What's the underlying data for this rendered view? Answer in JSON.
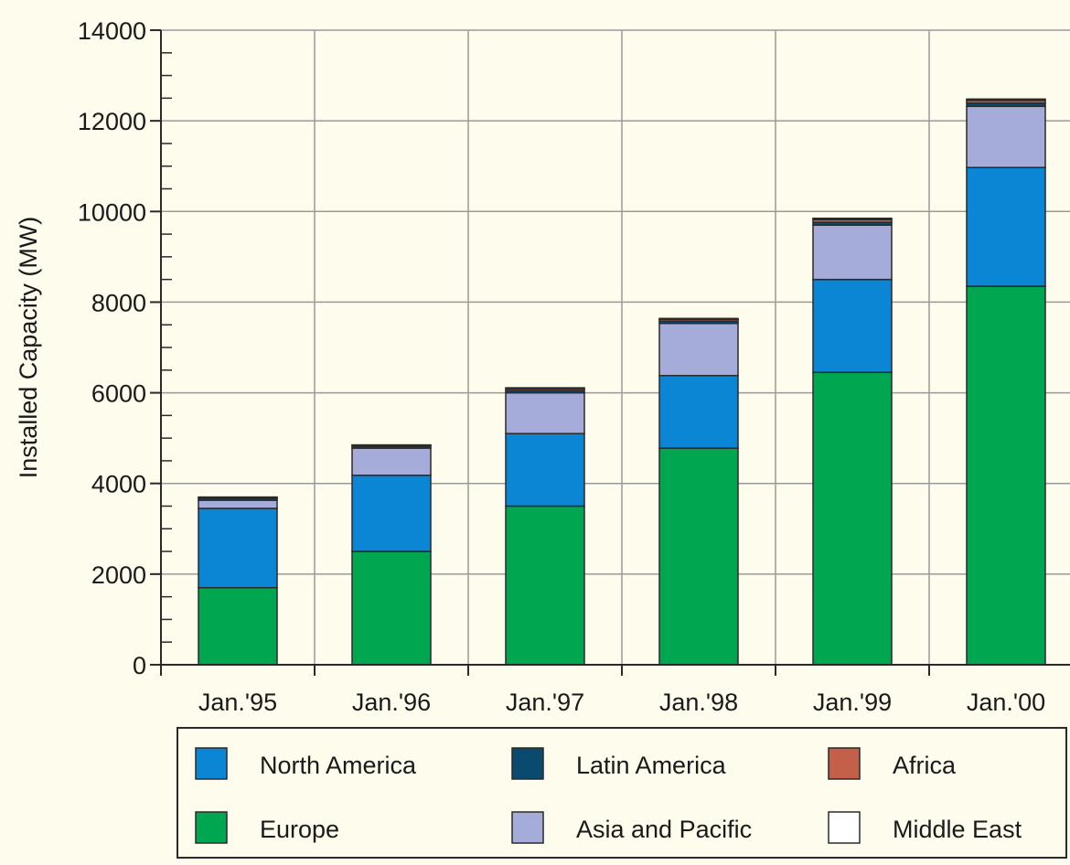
{
  "chart_data": {
    "type": "bar",
    "stacked": true,
    "title": "",
    "xlabel": "",
    "ylabel": "Installed Capacity (MW)",
    "ylim": [
      0,
      14000
    ],
    "yticks": [
      "0",
      "2000",
      "4000",
      "6000",
      "8000",
      "10000",
      "12000",
      "14000"
    ],
    "grid": true,
    "legend_position": "bottom",
    "categories": [
      "Jan.'95",
      "Jan.'96",
      "Jan.'97",
      "Jan.'98",
      "Jan.'99",
      "Jan.'00"
    ],
    "series": [
      {
        "name": "Europe",
        "color": "#00a650",
        "values": [
          1700,
          2500,
          3500,
          4780,
          6450,
          8350
        ]
      },
      {
        "name": "North America",
        "color": "#0a86d4",
        "values": [
          1750,
          1680,
          1600,
          1600,
          2050,
          2620
        ]
      },
      {
        "name": "Asia and Pacific",
        "color": "#a6acd9",
        "values": [
          180,
          600,
          900,
          1150,
          1200,
          1350
        ]
      },
      {
        "name": "Latin America",
        "color": "#0a4a6e",
        "values": [
          40,
          40,
          50,
          50,
          60,
          70
        ]
      },
      {
        "name": "Africa",
        "color": "#c4604a",
        "values": [
          20,
          20,
          40,
          40,
          60,
          60
        ]
      },
      {
        "name": "Middle East",
        "color": "#ffffff",
        "values": [
          10,
          10,
          20,
          20,
          30,
          30
        ]
      }
    ],
    "legend": [
      {
        "name": "North America",
        "color": "#0a86d4"
      },
      {
        "name": "Latin America",
        "color": "#0a4a6e"
      },
      {
        "name": "Africa",
        "color": "#c4604a"
      },
      {
        "name": "Europe",
        "color": "#00a650"
      },
      {
        "name": "Asia and Pacific",
        "color": "#a6acd9"
      },
      {
        "name": "Middle East",
        "color": "#ffffff"
      }
    ]
  }
}
